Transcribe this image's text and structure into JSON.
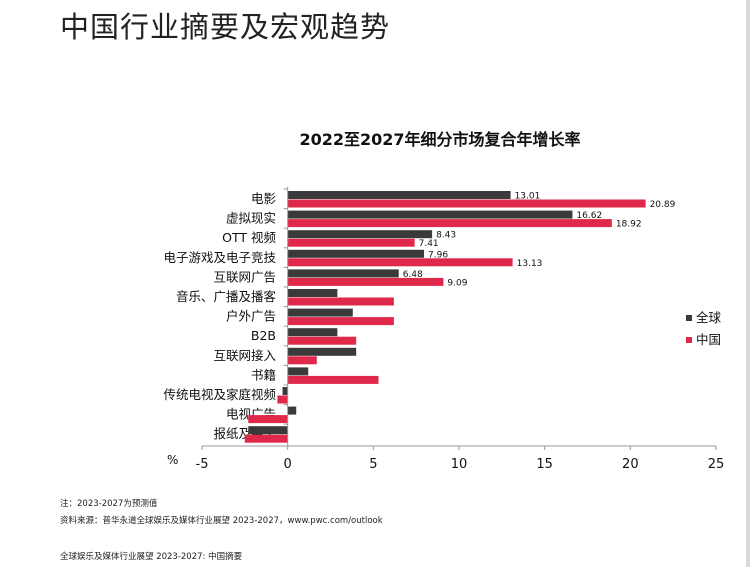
{
  "page": {
    "title": "中国行业摘要及宏观趋势",
    "note": "注：2023-2027为预测值",
    "source": "资料来源：普华永道全球娱乐及媒体行业展望 2023-2027，www.pwc.com/outlook",
    "footer": "全球娱乐及媒体行业展望 2023-2027: 中国摘要"
  },
  "chart_data": {
    "type": "bar",
    "orientation": "horizontal",
    "title": "2022至2027年细分市场复合年增长率",
    "xlabel": "%",
    "xlim": [
      -5,
      25
    ],
    "xticks": [
      -5,
      0,
      5,
      10,
      15,
      20,
      25
    ],
    "grid": false,
    "legend_position": "right",
    "categories": [
      "电影",
      "虚拟现实",
      "OTT 视频",
      "电子游戏及电子竞技",
      "互联网广告",
      "音乐、广播及播客",
      "户外广告",
      "B2B",
      "互联网接入",
      "书籍",
      "传统电视及家庭视频",
      "电视广告",
      "报纸及杂志"
    ],
    "series": [
      {
        "name": "全球",
        "color": "#3a3a3a",
        "values": [
          13.01,
          16.62,
          8.43,
          7.96,
          6.48,
          2.9,
          3.8,
          2.9,
          4.0,
          1.2,
          -0.3,
          0.5,
          -2.3
        ],
        "labels": [
          "13.01",
          "16.62",
          "8.43",
          "7.96",
          "6.48"
        ]
      },
      {
        "name": "中国",
        "color": "#e0294a",
        "values": [
          20.89,
          18.92,
          7.41,
          13.13,
          9.09,
          6.2,
          6.2,
          4.0,
          1.7,
          5.3,
          -0.6,
          -2.3,
          -2.5
        ],
        "labels": [
          "20.89",
          "18.92",
          "7.41",
          "13.13",
          "9.09"
        ]
      }
    ]
  }
}
